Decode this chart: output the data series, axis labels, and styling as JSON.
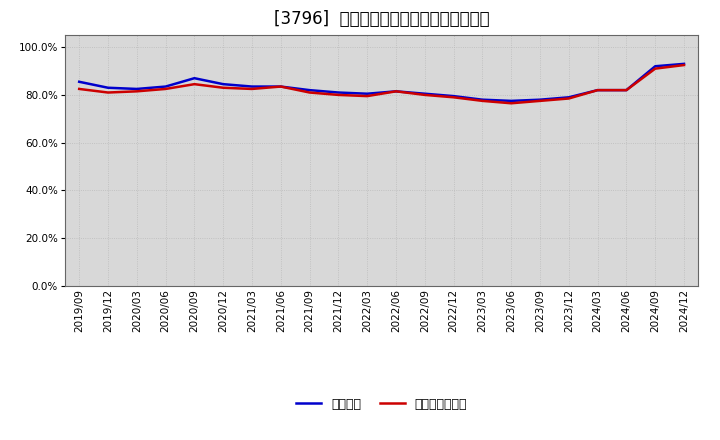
{
  "title": "[3796]  固定比率、固定長期適合率の推移",
  "dates": [
    "2019/09",
    "2019/12",
    "2020/03",
    "2020/06",
    "2020/09",
    "2020/12",
    "2021/03",
    "2021/06",
    "2021/09",
    "2021/12",
    "2022/03",
    "2022/06",
    "2022/09",
    "2022/12",
    "2023/03",
    "2023/06",
    "2023/09",
    "2023/12",
    "2024/03",
    "2024/06",
    "2024/09",
    "2024/12"
  ],
  "fixed_ratio": [
    85.5,
    83.0,
    82.5,
    83.5,
    87.0,
    84.5,
    83.5,
    83.5,
    82.0,
    81.0,
    80.5,
    81.5,
    80.5,
    79.5,
    78.0,
    77.5,
    78.0,
    79.0,
    82.0,
    82.0,
    92.0,
    93.0
  ],
  "fixed_long_ratio": [
    82.5,
    81.0,
    81.5,
    82.5,
    84.5,
    83.0,
    82.5,
    83.5,
    81.0,
    80.0,
    79.5,
    81.5,
    80.0,
    79.0,
    77.5,
    76.5,
    77.5,
    78.5,
    82.0,
    82.0,
    91.0,
    92.5
  ],
  "line_color_fixed": "#0000cc",
  "line_color_long": "#cc0000",
  "background_color": "#ffffff",
  "grid_color": "#bbbbbb",
  "plot_bg_color": "#d8d8d8",
  "ylim": [
    0,
    105
  ],
  "yticks": [
    0,
    20,
    40,
    60,
    80,
    100
  ],
  "ytick_labels": [
    "0.0%",
    "20.0%",
    "40.0%",
    "60.0%",
    "80.0%",
    "100.0%"
  ],
  "legend_fixed": "固定比率",
  "legend_long": "固定長期適合率",
  "title_fontsize": 12,
  "tick_fontsize": 7.5,
  "legend_fontsize": 9,
  "linewidth": 1.8
}
